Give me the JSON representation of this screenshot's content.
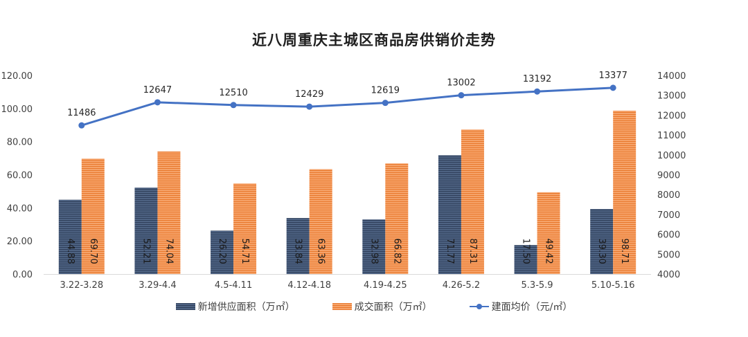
{
  "chart_data": {
    "type": "bar",
    "title": "近八周重庆主城区商品房供销价走势",
    "categories": [
      "3.22-3.28",
      "3.29-4.4",
      "4.5-4.11",
      "4.12-4.18",
      "4.19-4.25",
      "4.26-5.2",
      "5.3-5.9",
      "5.10-5.16"
    ],
    "series": [
      {
        "name": "新增供应面积（万㎡）",
        "type": "bar",
        "axis": "left",
        "color": "#44546a",
        "values": [
          44.88,
          52.21,
          26.2,
          33.84,
          32.98,
          71.77,
          17.5,
          39.3
        ],
        "labels": [
          "44.88",
          "52.21",
          "26.20",
          "33.84",
          "32.98",
          "71.77",
          "17.50",
          "39.30"
        ]
      },
      {
        "name": "成交面积（万㎡）",
        "type": "bar",
        "axis": "left",
        "color": "#ed7d31",
        "values": [
          69.7,
          74.04,
          54.71,
          63.36,
          66.82,
          87.31,
          49.42,
          98.71
        ],
        "labels": [
          "69.70",
          "74.04",
          "54.71",
          "63.36",
          "66.82",
          "87.31",
          "49.42",
          "98.71"
        ]
      },
      {
        "name": "建面均价（元/㎡）",
        "type": "line",
        "axis": "right",
        "color": "#4472c4",
        "values": [
          11486,
          12647,
          12510,
          12429,
          12619,
          13002,
          13192,
          13377
        ],
        "labels": [
          "11486",
          "12647",
          "12510",
          "12429",
          "12619",
          "13002",
          "13192",
          "13377"
        ]
      }
    ],
    "ylim_left": [
      0,
      120
    ],
    "ylim_right": [
      4000,
      14000
    ],
    "left_ticks": [
      "0.00",
      "20.00",
      "40.00",
      "60.00",
      "80.00",
      "100.00",
      "120.00"
    ],
    "right_ticks": [
      "4000",
      "5000",
      "6000",
      "7000",
      "8000",
      "9000",
      "10000",
      "11000",
      "12000",
      "13000",
      "14000"
    ],
    "grid": false,
    "legend_position": "bottom"
  }
}
